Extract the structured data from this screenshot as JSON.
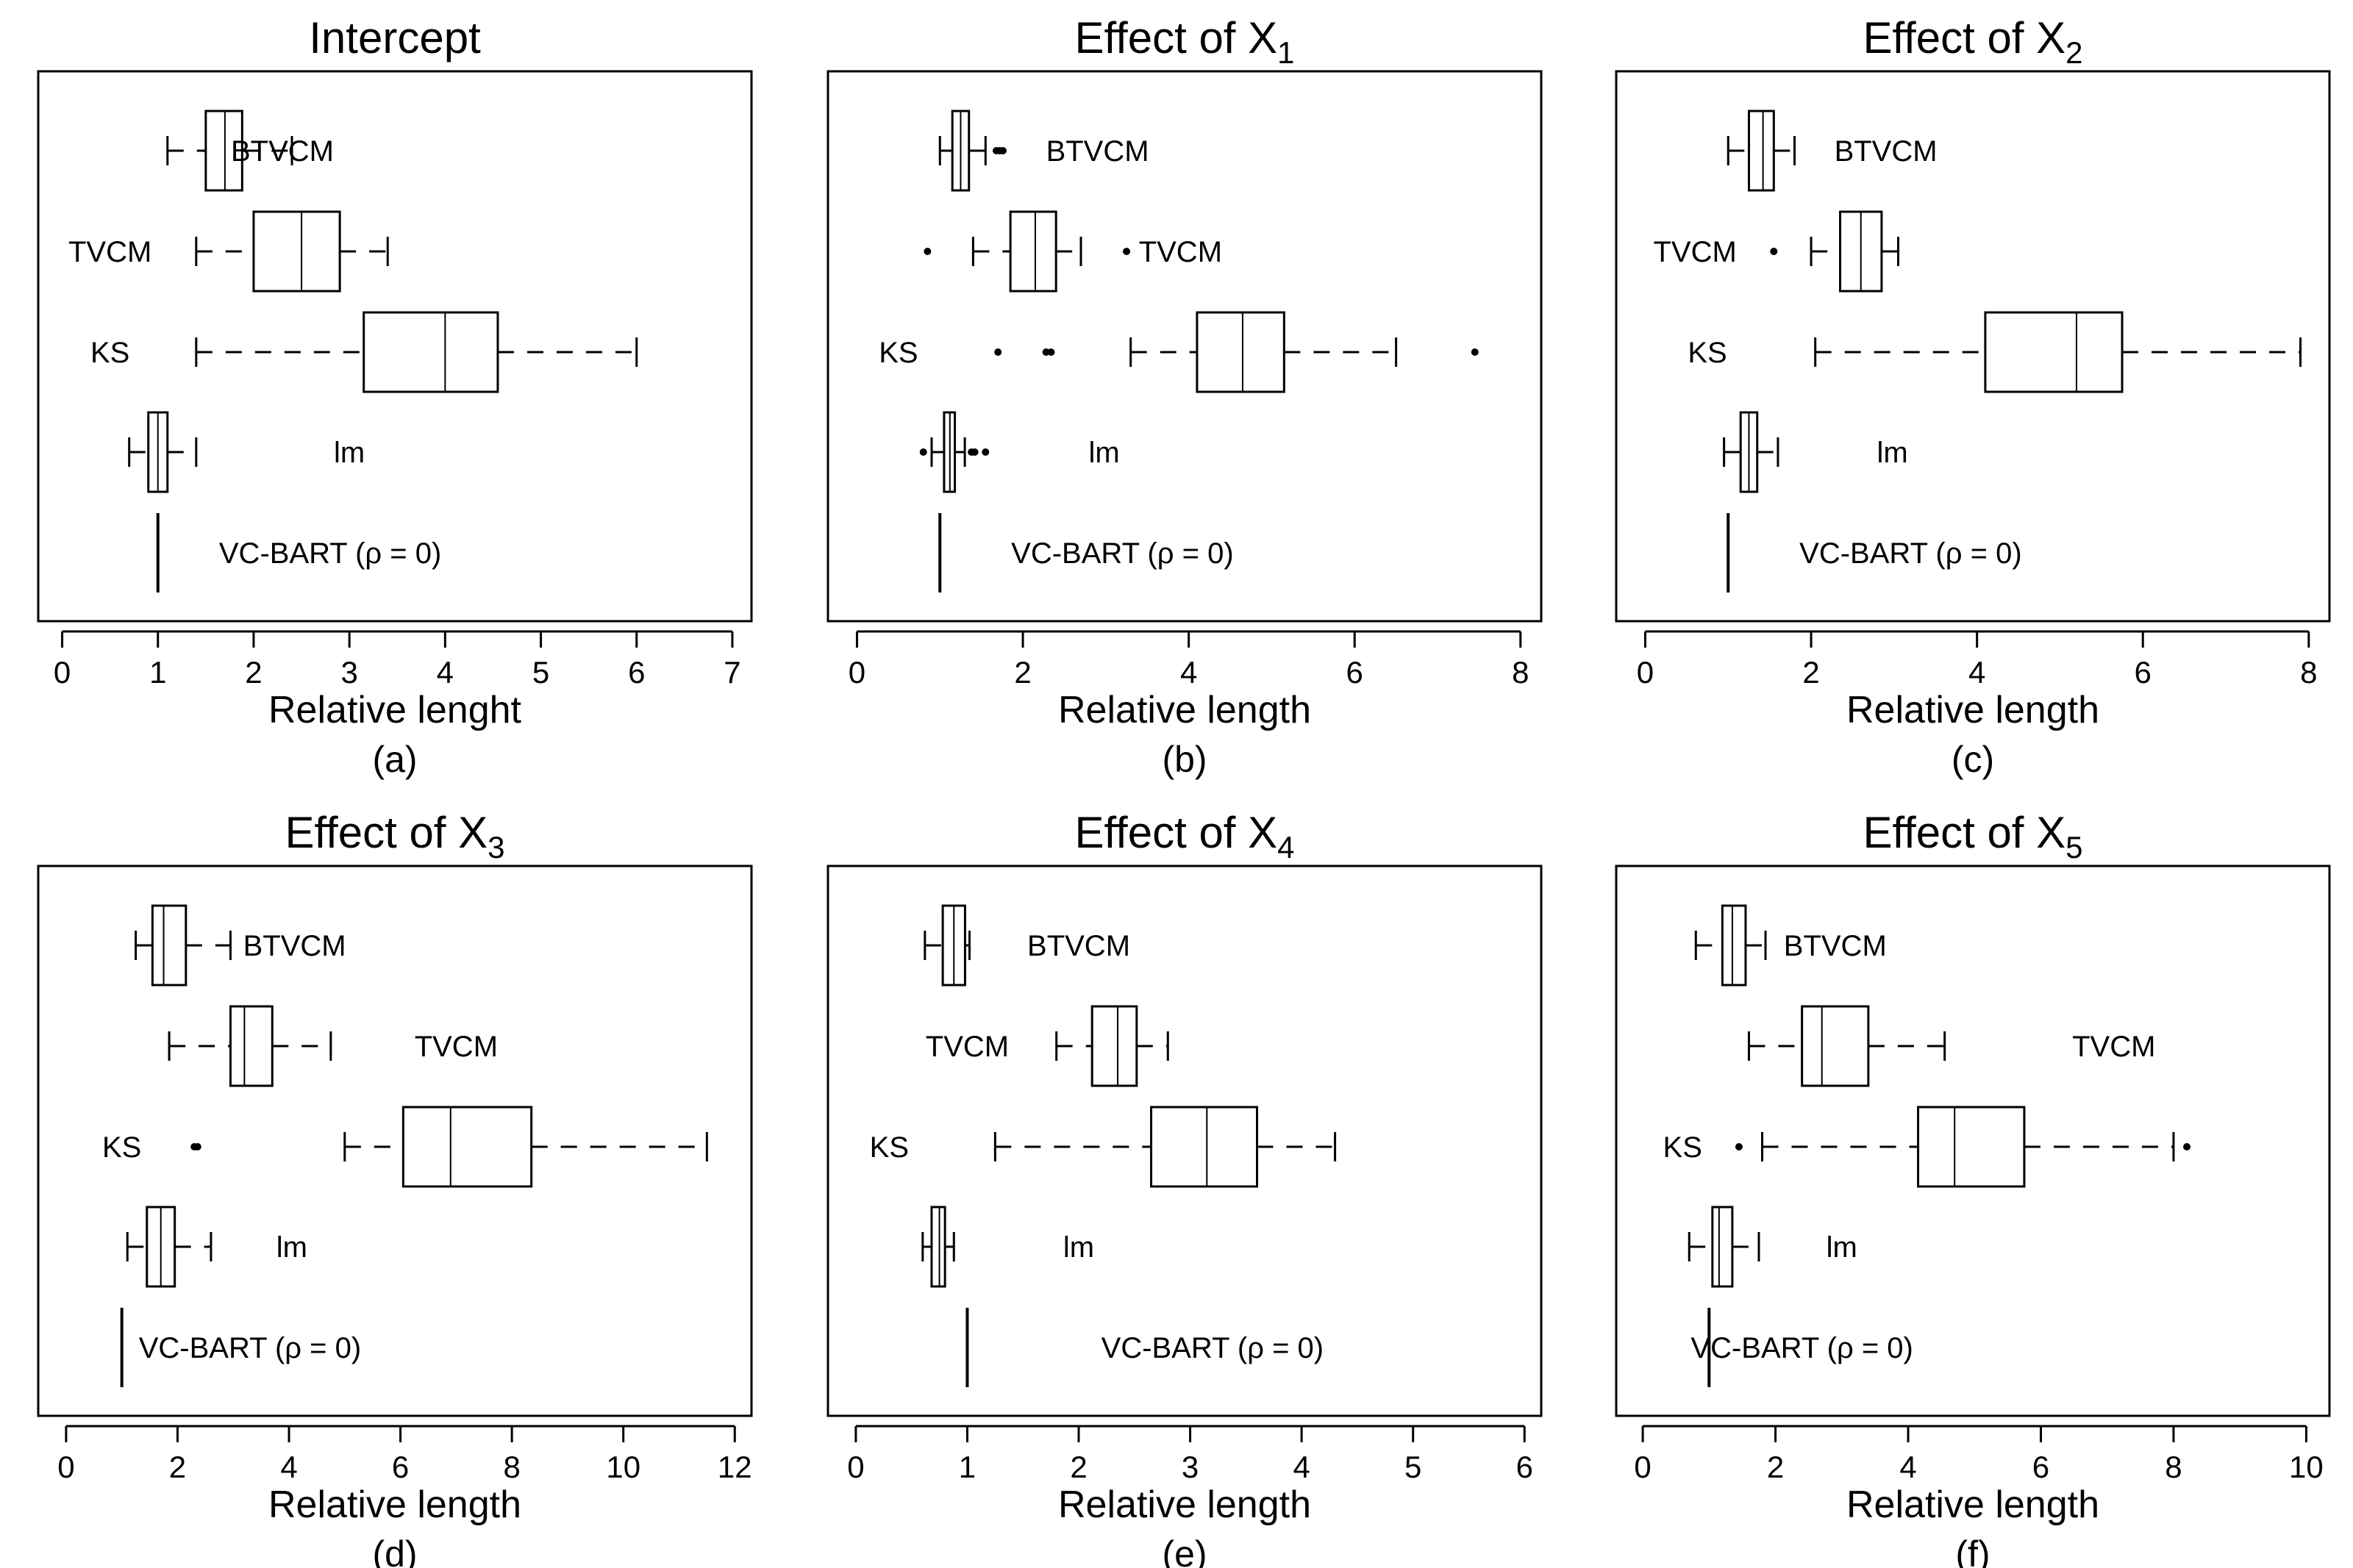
{
  "chart_data": [
    {
      "type": "boxplot",
      "title_prefix": "Intercept",
      "title_sub": "",
      "xlabel": "Relative lenght",
      "panel_label": "(a)",
      "xlim": [
        -0.25,
        7.2
      ],
      "xticks": [
        "0",
        "1",
        "2",
        "3",
        "4",
        "5",
        "6",
        "7"
      ],
      "grid": false,
      "series": [
        {
          "name": "BTVCM",
          "min": 1.1,
          "q1": 1.5,
          "median": 1.7,
          "q3": 1.88,
          "max": 2.4,
          "outliers": [],
          "label_x": 2.3
        },
        {
          "name": "TVCM",
          "min": 1.4,
          "q1": 2.0,
          "median": 2.5,
          "q3": 2.9,
          "max": 3.4,
          "outliers": [],
          "label_x": 0.5
        },
        {
          "name": "KS",
          "min": 1.4,
          "q1": 3.15,
          "median": 4.0,
          "q3": 4.55,
          "max": 6.0,
          "outliers": [],
          "label_x": 0.5
        },
        {
          "name": "lm",
          "min": 0.7,
          "q1": 0.9,
          "median": 1.0,
          "q3": 1.1,
          "max": 1.4,
          "outliers": [],
          "label_x": 3.0
        },
        {
          "name": "VC-BART (ρ = 0)",
          "min": 1.0,
          "q1": 1.0,
          "median": 1.0,
          "q3": 1.0,
          "max": 1.0,
          "outliers": [],
          "label_x": 2.8
        }
      ]
    },
    {
      "type": "boxplot",
      "title_prefix": "Effect of X",
      "title_sub": "1",
      "xlabel": "Relative length",
      "panel_label": "(b)",
      "xlim": [
        -0.35,
        8.25
      ],
      "xticks": [
        "0",
        "2",
        "4",
        "6",
        "8"
      ],
      "grid": false,
      "series": [
        {
          "name": "BTVCM",
          "min": 1.0,
          "q1": 1.15,
          "median": 1.25,
          "q3": 1.35,
          "max": 1.55,
          "outliers": [
            1.68,
            1.72,
            1.76
          ],
          "label_x": 2.9
        },
        {
          "name": "TVCM",
          "min": 1.4,
          "q1": 1.85,
          "median": 2.15,
          "q3": 2.4,
          "max": 2.7,
          "outliers": [
            0.85,
            3.25
          ],
          "label_x": 3.9
        },
        {
          "name": "KS",
          "min": 3.3,
          "q1": 4.1,
          "median": 4.65,
          "q3": 5.15,
          "max": 6.5,
          "outliers": [
            1.7,
            2.28,
            2.34,
            7.45
          ],
          "label_x": 0.5
        },
        {
          "name": "lm",
          "min": 0.9,
          "q1": 1.05,
          "median": 1.12,
          "q3": 1.18,
          "max": 1.3,
          "outliers": [
            0.8,
            1.38,
            1.42,
            1.55
          ],
          "label_x": 2.98
        },
        {
          "name": "VC-BART (ρ = 0)",
          "min": 1.0,
          "q1": 1.0,
          "median": 1.0,
          "q3": 1.0,
          "max": 1.0,
          "outliers": [],
          "label_x": 3.2
        }
      ]
    },
    {
      "type": "boxplot",
      "title_prefix": "Effect of X",
      "title_sub": "2",
      "xlabel": "Relative length",
      "panel_label": "(c)",
      "xlim": [
        -0.35,
        8.25
      ],
      "xticks": [
        "0",
        "2",
        "4",
        "6",
        "8"
      ],
      "grid": false,
      "series": [
        {
          "name": "BTVCM",
          "min": 1.0,
          "q1": 1.25,
          "median": 1.42,
          "q3": 1.55,
          "max": 1.8,
          "outliers": [],
          "label_x": 2.9
        },
        {
          "name": "TVCM",
          "min": 2.0,
          "q1": 2.35,
          "median": 2.6,
          "q3": 2.85,
          "max": 3.05,
          "outliers": [
            1.55
          ],
          "label_x": 0.6
        },
        {
          "name": "KS",
          "min": 2.05,
          "q1": 4.1,
          "median": 5.2,
          "q3": 5.75,
          "max": 7.9,
          "outliers": [],
          "label_x": 0.75
        },
        {
          "name": "lm",
          "min": 0.95,
          "q1": 1.15,
          "median": 1.25,
          "q3": 1.35,
          "max": 1.6,
          "outliers": [],
          "label_x": 2.98
        },
        {
          "name": "VC-BART (ρ = 0)",
          "min": 1.0,
          "q1": 1.0,
          "median": 1.0,
          "q3": 1.0,
          "max": 1.0,
          "outliers": [],
          "label_x": 3.2
        }
      ]
    },
    {
      "type": "boxplot",
      "title_prefix": "Effect of X",
      "title_sub": "3",
      "xlabel": "Relative length",
      "panel_label": "(d)",
      "xlim": [
        -0.5,
        12.3
      ],
      "xticks": [
        "0",
        "2",
        "4",
        "6",
        "8",
        "10",
        "12"
      ],
      "grid": false,
      "series": [
        {
          "name": "BTVCM",
          "min": 1.25,
          "q1": 1.55,
          "median": 1.75,
          "q3": 2.15,
          "max": 2.95,
          "outliers": [],
          "label_x": 4.1
        },
        {
          "name": "TVCM",
          "min": 1.85,
          "q1": 2.95,
          "median": 3.2,
          "q3": 3.7,
          "max": 4.75,
          "outliers": [],
          "label_x": 7.0
        },
        {
          "name": "KS",
          "min": 5.0,
          "q1": 6.05,
          "median": 6.9,
          "q3": 8.35,
          "max": 11.5,
          "outliers": [
            2.3,
            2.36
          ],
          "label_x": 1.0
        },
        {
          "name": "lm",
          "min": 1.1,
          "q1": 1.45,
          "median": 1.7,
          "q3": 1.95,
          "max": 2.6,
          "outliers": [],
          "label_x": 4.05
        },
        {
          "name": "VC-BART (ρ = 0)",
          "min": 1.0,
          "q1": 1.0,
          "median": 1.0,
          "q3": 1.0,
          "max": 1.0,
          "outliers": [],
          "label_x": 3.3
        }
      ]
    },
    {
      "type": "boxplot",
      "title_prefix": "Effect of X",
      "title_sub": "4",
      "xlabel": "Relative length",
      "panel_label": "(e)",
      "xlim": [
        -0.25,
        6.15
      ],
      "xticks": [
        "0",
        "1",
        "2",
        "3",
        "4",
        "5",
        "6"
      ],
      "grid": false,
      "series": [
        {
          "name": "BTVCM",
          "min": 0.62,
          "q1": 0.78,
          "median": 0.88,
          "q3": 0.98,
          "max": 1.02,
          "outliers": [],
          "label_x": 2.0
        },
        {
          "name": "TVCM",
          "min": 1.8,
          "q1": 2.12,
          "median": 2.35,
          "q3": 2.52,
          "max": 2.8,
          "outliers": [],
          "label_x": 1.0
        },
        {
          "name": "KS",
          "min": 1.25,
          "q1": 2.65,
          "median": 3.15,
          "q3": 3.6,
          "max": 4.3,
          "outliers": [],
          "label_x": 0.3
        },
        {
          "name": "lm",
          "min": 0.6,
          "q1": 0.68,
          "median": 0.75,
          "q3": 0.8,
          "max": 0.88,
          "outliers": [],
          "label_x": 2.0
        },
        {
          "name": "VC-BART (ρ = 0)",
          "min": 1.0,
          "q1": 1.0,
          "median": 1.0,
          "q3": 1.0,
          "max": 1.0,
          "outliers": [],
          "label_x": 3.2
        }
      ]
    },
    {
      "type": "boxplot",
      "title_prefix": "Effect of X",
      "title_sub": "5",
      "xlabel": "Relative length",
      "panel_label": "(f)",
      "xlim": [
        -0.4,
        10.35
      ],
      "xticks": [
        "0",
        "2",
        "4",
        "6",
        "8",
        "10"
      ],
      "grid": false,
      "series": [
        {
          "name": "BTVCM",
          "min": 0.8,
          "q1": 1.2,
          "median": 1.35,
          "q3": 1.55,
          "max": 1.85,
          "outliers": [],
          "label_x": 2.9
        },
        {
          "name": "TVCM",
          "min": 1.6,
          "q1": 2.4,
          "median": 2.7,
          "q3": 3.4,
          "max": 4.55,
          "outliers": [],
          "label_x": 7.1
        },
        {
          "name": "KS",
          "min": 1.8,
          "q1": 4.15,
          "median": 4.7,
          "q3": 5.75,
          "max": 8.0,
          "outliers": [
            1.45,
            8.2
          ],
          "label_x": 0.6
        },
        {
          "name": "lm",
          "min": 0.7,
          "q1": 1.05,
          "median": 1.15,
          "q3": 1.35,
          "max": 1.75,
          "outliers": [],
          "label_x": 3.0
        },
        {
          "name": "VC-BART (ρ = 0)",
          "min": 1.0,
          "q1": 1.0,
          "median": 1.0,
          "q3": 1.0,
          "max": 1.0,
          "outliers": [],
          "label_x": 2.4
        }
      ]
    }
  ]
}
